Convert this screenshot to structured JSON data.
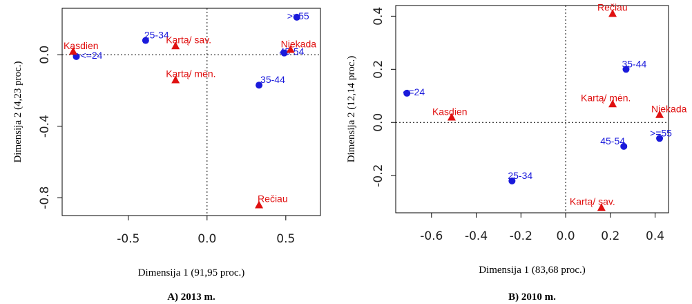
{
  "colors": {
    "age": "#1a1adb",
    "freq": "#e01010"
  },
  "chart_data": [
    {
      "type": "scatter",
      "panel": "A",
      "caption": "A) 2013 m.",
      "xlabel": "Dimensija 1 (91,95 proc.)",
      "ylabel": "Dimensija 2 (4,23 proc.)",
      "xlim": [
        -0.92,
        0.72
      ],
      "ylim": [
        -0.9,
        0.26
      ],
      "xticks": [
        -0.5,
        0.0,
        0.5
      ],
      "xtick_labels": [
        "-0.5",
        "0.0",
        "0.5"
      ],
      "yticks": [
        -0.8,
        -0.4,
        0.0
      ],
      "ytick_labels": [
        "-0.8",
        "-0.4",
        "0.0"
      ],
      "reference_lines": {
        "x": 0,
        "y": 0
      },
      "series": [
        {
          "marker": "circle",
          "color": "#1a1adb",
          "points": [
            {
              "label": "<=24",
              "x": -0.83,
              "y": -0.01
            },
            {
              "label": "25-34",
              "x": -0.39,
              "y": 0.08
            },
            {
              "label": "35-44",
              "x": 0.33,
              "y": -0.17
            },
            {
              "label": "45-54",
              "x": 0.49,
              "y": 0.01
            },
            {
              "label": ">=55",
              "x": 0.57,
              "y": 0.21
            }
          ]
        },
        {
          "marker": "triangle",
          "color": "#e01010",
          "points": [
            {
              "label": "Kasdien",
              "x": -0.85,
              "y": 0.02
            },
            {
              "label": "Kartą/ sav.",
              "x": -0.2,
              "y": 0.05
            },
            {
              "label": "Kartą/ mėn.",
              "x": -0.2,
              "y": -0.14
            },
            {
              "label": "Niekada",
              "x": 0.53,
              "y": 0.03
            },
            {
              "label": "Rečiau",
              "x": 0.33,
              "y": -0.84
            }
          ]
        }
      ]
    },
    {
      "type": "scatter",
      "panel": "B",
      "caption": "B) 2010 m.",
      "xlabel": "Dimensija 1 (83,68 proc.)",
      "ylabel": "Dimensija 2 (12,14 proc.)",
      "xlim": [
        -0.76,
        0.46
      ],
      "ylim": [
        -0.34,
        0.44
      ],
      "xticks": [
        -0.6,
        -0.4,
        -0.2,
        0.0,
        0.2,
        0.4
      ],
      "xtick_labels": [
        "-0.6",
        "-0.4",
        "-0.2",
        "0.0",
        "0.2",
        "0.4"
      ],
      "yticks": [
        -0.2,
        0.0,
        0.2,
        0.4
      ],
      "ytick_labels": [
        "-0.2",
        "0.0",
        "0.2",
        "0.4"
      ],
      "reference_lines": {
        "x": 0,
        "y": 0
      },
      "series": [
        {
          "marker": "circle",
          "color": "#1a1adb",
          "points": [
            {
              "label": "<=24",
              "x": -0.71,
              "y": 0.11
            },
            {
              "label": "25-34",
              "x": -0.24,
              "y": -0.22
            },
            {
              "label": "35-44",
              "x": 0.27,
              "y": 0.2
            },
            {
              "label": "45-54",
              "x": 0.26,
              "y": -0.09
            },
            {
              "label": ">=55",
              "x": 0.42,
              "y": -0.06
            }
          ]
        },
        {
          "marker": "triangle",
          "color": "#e01010",
          "points": [
            {
              "label": "Kasdien",
              "x": -0.51,
              "y": 0.02
            },
            {
              "label": "Kartą/ mėn.",
              "x": 0.21,
              "y": 0.07
            },
            {
              "label": "Niekada",
              "x": 0.42,
              "y": 0.03
            },
            {
              "label": "Rečiau",
              "x": 0.21,
              "y": 0.41
            },
            {
              "label": "Kartą/ sav.",
              "x": 0.16,
              "y": -0.32
            }
          ]
        }
      ]
    }
  ]
}
